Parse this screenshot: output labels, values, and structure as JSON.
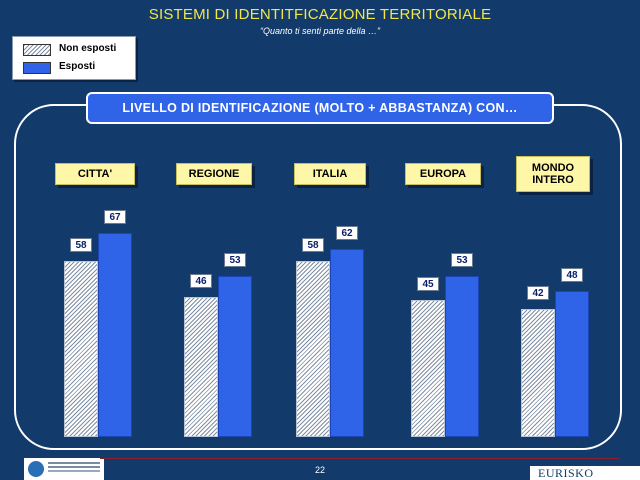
{
  "header": {
    "title": "SISTEMI DI IDENTITFICAZIONE TERRITORIALE",
    "subtitle": "“Quanto ti senti parte della …”"
  },
  "banner": "LIVELLO DI IDENTIFICAZIONE (MOLTO + ABBASTANZA) CON…",
  "chart_data": {
    "type": "bar",
    "title": "",
    "categories": [
      "CITTA'",
      "REGIONE",
      "ITALIA",
      "EUROPA",
      "MONDO INTERO"
    ],
    "series": [
      {
        "name": "Non esposti",
        "values": [
          58,
          46,
          58,
          45,
          42
        ],
        "pattern": "hatched"
      },
      {
        "name": "Esposti",
        "values": [
          67,
          53,
          62,
          53,
          48
        ],
        "color": "#2f63e8"
      }
    ],
    "ylim": [
      0,
      100
    ],
    "grid": false,
    "legend": "top-left"
  },
  "footer": {
    "page_number": "22",
    "brand": "EURISKO"
  },
  "colors": {
    "background": "#123a6a",
    "title": "#f2e64a",
    "esposti": "#2f63e8",
    "category_label_bg": "#fff7a8"
  }
}
